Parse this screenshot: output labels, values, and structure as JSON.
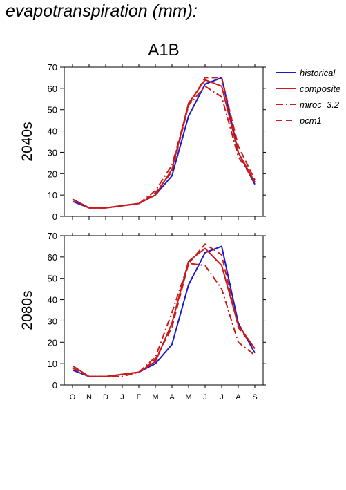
{
  "page_title": "evapotranspiration (mm):",
  "chart_data": {
    "type": "line",
    "title": "A1B",
    "x": [
      "O",
      "N",
      "D",
      "J",
      "F",
      "M",
      "A",
      "M",
      "J",
      "J",
      "A",
      "S"
    ],
    "ylim": [
      0,
      70
    ],
    "yticks": [
      "0",
      "10",
      "20",
      "30",
      "40",
      "50",
      "60",
      "70"
    ],
    "legend": {
      "placement": "right"
    },
    "series_styles": [
      {
        "name": "historical",
        "color": "#1a1acc",
        "dash": ""
      },
      {
        "name": "composite",
        "color": "#cc1a1a",
        "dash": ""
      },
      {
        "name": "miroc_3.2",
        "color": "#cc1a1a",
        "dash": "10,4,2,4"
      },
      {
        "name": "pcm1",
        "color": "#cc1a1a",
        "dash": "9,5"
      }
    ],
    "panels": [
      {
        "label": "2040s",
        "series": [
          {
            "name": "historical",
            "values": [
              7,
              4,
              4,
              5,
              6,
              10,
              19,
              47,
              62,
              65,
              30,
              15
            ]
          },
          {
            "name": "composite",
            "values": [
              8,
              4,
              4,
              5,
              6,
              10,
              22,
              53,
              64,
              61,
              30,
              16
            ]
          },
          {
            "name": "miroc_3.2",
            "values": [
              8,
              4,
              4,
              5,
              6,
              12,
              24,
              52,
              61,
              56,
              28,
              16
            ]
          },
          {
            "name": "pcm1",
            "values": [
              8,
              4,
              4,
              5,
              6,
              11,
              21,
              52,
              65,
              65,
              33,
              17
            ]
          }
        ]
      },
      {
        "label": "2080s",
        "series": [
          {
            "name": "historical",
            "values": [
              7,
              4,
              4,
              5,
              6,
              10,
              19,
              47,
              62,
              65,
              29,
              15
            ]
          },
          {
            "name": "composite",
            "values": [
              9,
              4,
              4,
              5,
              6,
              11,
              29,
              58,
              64,
              56,
              28,
              17
            ]
          },
          {
            "name": "miroc_3.2",
            "values": [
              8,
              4,
              4,
              4,
              6,
              13,
              34,
              57,
              56,
              45,
              20,
              14
            ]
          },
          {
            "name": "pcm1",
            "values": [
              8,
              4,
              4,
              5,
              6,
              12,
              27,
              57,
              66,
              61,
              27,
              17
            ]
          }
        ]
      }
    ]
  }
}
